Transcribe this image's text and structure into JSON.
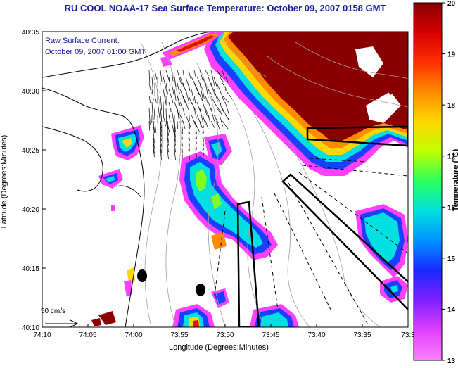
{
  "title": "RU COOL  NOAA-17  Sea Surface Temperature:  October 09, 2007 0158 GMT",
  "current_note": {
    "line1": "Raw Surface Current:",
    "line2": "October 09, 2007 01:00 GMT"
  },
  "x_axis": {
    "label": "Longitude (Degrees:Minutes)",
    "ticks": [
      "74:10",
      "74:05",
      "74:00",
      "73:55",
      "73:50",
      "73:45",
      "73:40",
      "73:35",
      "73:3"
    ],
    "range_min": [
      74.1667,
      73.5
    ]
  },
  "y_axis": {
    "label": "Latitude (Degrees:Minutes)",
    "ticks": [
      "40:35",
      "40:30",
      "40:25",
      "40:20",
      "40:15",
      "40:10"
    ]
  },
  "colorbar": {
    "label": "Temperature (°C)",
    "ticks": [
      "20",
      "19",
      "18",
      "17",
      "16",
      "15",
      "14",
      "13"
    ],
    "min": 13,
    "max": 20,
    "colors": [
      "#8a0000",
      "#d40000",
      "#ff3000",
      "#ff8c00",
      "#ffd800",
      "#bfff00",
      "#2bff60",
      "#00e0e0",
      "#0090ff",
      "#1a28ff",
      "#8020ff",
      "#e040ff",
      "#ff80ff"
    ]
  },
  "scale_vector": {
    "label": "50 cm/s"
  },
  "sst_colors": {
    "warm": "#8a0000",
    "red": "#e01010",
    "orange": "#ff8c00",
    "yellow": "#ffd800",
    "green": "#7fff20",
    "cyan": "#00e0e0",
    "blue": "#1a40ff",
    "violet": "#a030ff",
    "magenta": "#ff40ff"
  }
}
